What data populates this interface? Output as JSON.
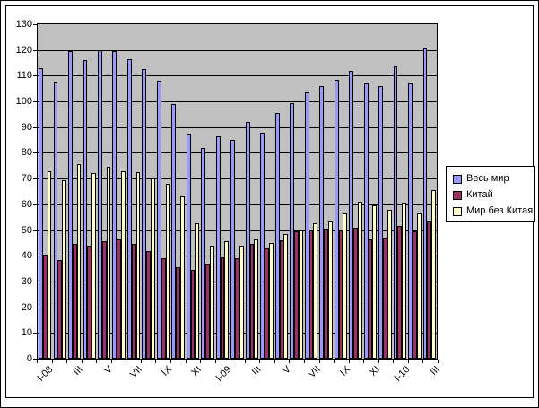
{
  "chart_data": {
    "type": "bar",
    "title": "",
    "categories": [
      "I-08",
      "",
      "III",
      "",
      "V",
      "",
      "VII",
      "",
      "IX",
      "",
      "XI",
      "",
      "I-09",
      "",
      "III",
      "",
      "V",
      "",
      "VII",
      "",
      "IX",
      "",
      "XI",
      "",
      "I-10",
      "",
      "III"
    ],
    "series": [
      {
        "name": "Весь мир",
        "color": "#9999FF",
        "values": [
          113,
          107.5,
          119.5,
          116,
          120,
          119.5,
          116.5,
          112.5,
          108,
          99,
          87.5,
          82,
          86.5,
          85,
          92,
          88,
          95.5,
          99.5,
          103.5,
          106,
          108.5,
          112,
          107,
          106,
          113.5,
          107,
          120.5
        ]
      },
      {
        "name": "Китай",
        "color": "#993366",
        "values": [
          40.5,
          38.5,
          44.5,
          44,
          45.5,
          46.5,
          44.5,
          42,
          39,
          35.5,
          34.5,
          37,
          39.5,
          39,
          44.5,
          43,
          46,
          49.5,
          50,
          50.5,
          50,
          51,
          46.5,
          47,
          51.5,
          49.5,
          53.5
        ]
      },
      {
        "name": "Мир без Китая",
        "color": "#FFFFCC",
        "values": [
          73,
          69.5,
          75.5,
          72,
          74.5,
          73,
          72.5,
          70,
          68,
          63,
          52.5,
          44,
          45.5,
          44,
          46.5,
          45,
          48.5,
          50,
          52.5,
          53.5,
          56.5,
          61,
          59.5,
          58,
          60.5,
          56.5,
          65.5
        ]
      }
    ],
    "y_tick_labels": [
      "0",
      "10",
      "20",
      "30",
      "40",
      "50",
      "60",
      "70",
      "80",
      "90",
      "100",
      "110",
      "120",
      "130"
    ],
    "ylim": [
      0,
      130
    ],
    "ytick_step": 10,
    "grid": true,
    "plot_bg": "#C0C0C0",
    "legend_position": "right",
    "xlabel": "",
    "ylabel": ""
  }
}
